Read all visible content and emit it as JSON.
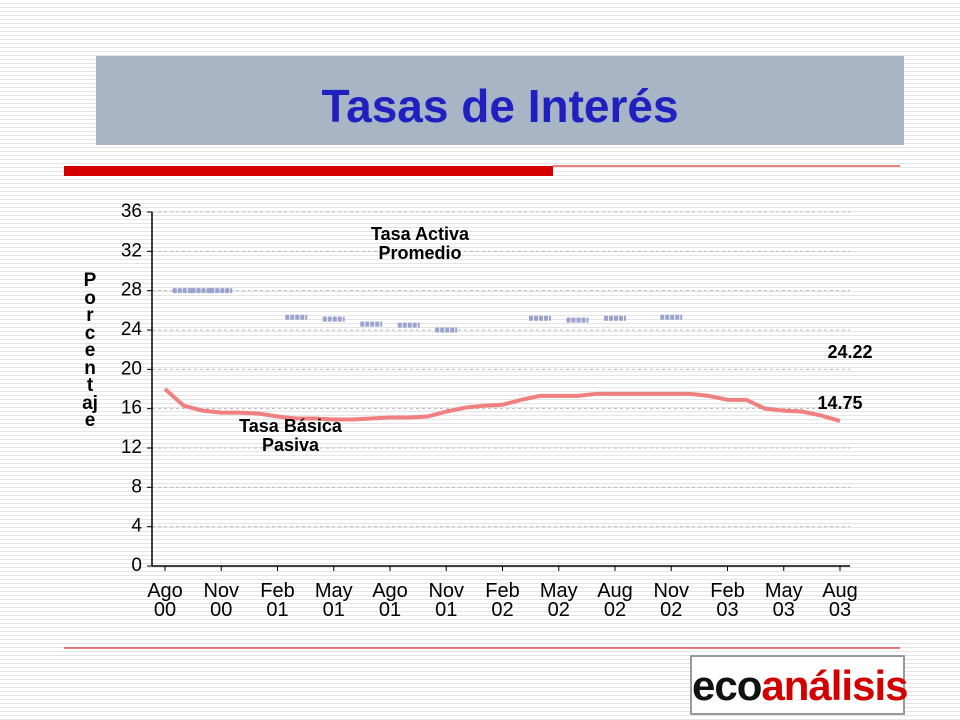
{
  "chart_data": {
    "type": "line",
    "title": "Tasas de Interés",
    "y_label": "Porcentaje",
    "categories": [
      "Ago 00",
      null,
      null,
      "Nov 00",
      null,
      null,
      "Feb 01",
      null,
      null,
      "May 01",
      null,
      null,
      "Ago 01",
      null,
      null,
      "Nov 01",
      null,
      null,
      "Feb 02",
      null,
      null,
      "May 02",
      null,
      null,
      "Aug 02",
      null,
      null,
      "Nov 02",
      null,
      null,
      "Feb 03",
      null,
      null,
      "May 03",
      null,
      null,
      "Aug 03"
    ],
    "series": [
      {
        "name": "Tasa Activa Promedio",
        "color": "#9aa3cf",
        "style": "dash",
        "values": [
          null,
          28,
          28,
          28,
          null,
          null,
          null,
          25.3,
          null,
          25.1,
          null,
          24.6,
          null,
          24.5,
          null,
          24.0,
          null,
          null,
          null,
          null,
          25.2,
          null,
          25.0,
          null,
          25.2,
          null,
          null,
          25.3,
          null,
          null,
          null,
          null,
          null,
          null,
          null,
          null,
          null
        ]
      },
      {
        "name": "Tasa Básica Pasiva",
        "color": "#f08080",
        "style": "line",
        "values": [
          18,
          16.3,
          15.8,
          15.6,
          15.6,
          15.5,
          15.2,
          15,
          15,
          14.9,
          14.9,
          15,
          15.1,
          15.1,
          15.2,
          15.7,
          16.1,
          16.3,
          16.4,
          16.9,
          17.3,
          17.3,
          17.3,
          17.5,
          17.5,
          17.5,
          17.5,
          17.5,
          17.5,
          17.3,
          16.9,
          16.9,
          16,
          15.8,
          15.7,
          15.3,
          14.75
        ]
      }
    ],
    "annotations": [
      "24.22",
      "14.75"
    ],
    "ylim": [
      0,
      36
    ],
    "yticks": [
      0,
      4,
      8,
      12,
      16,
      20,
      24,
      28,
      32,
      36
    ],
    "grid": true
  },
  "logo": {
    "part1": "eco",
    "part2": "análisis"
  }
}
